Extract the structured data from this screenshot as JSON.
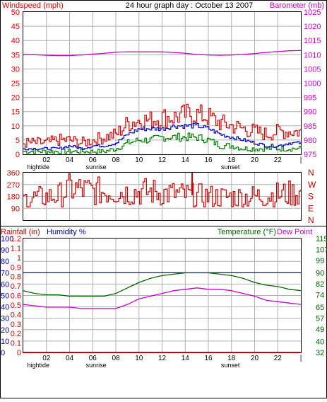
{
  "colors": {
    "wind": "#dd0000",
    "gust_blue": "#0000cc",
    "wind_green": "#008000",
    "barometer": "#cc00cc",
    "direction": "#cc0000",
    "rain": "#cc0000",
    "humidity": "#000099",
    "temperature": "#006600",
    "dewpoint": "#cc00cc",
    "grid": "#b0b0b0",
    "frame": "#000000"
  },
  "top_panel": {
    "left_label": "Windspeed (mph)",
    "title": "24 hour graph day : October 13 2007",
    "right_label": "Barometer (mb)"
  },
  "mid_panel": {
    "compass_letters": [
      "N",
      "W",
      "S",
      "E",
      "N"
    ]
  },
  "bottom_panel": {
    "rain_label": "Rainfall (in)",
    "humidity_label": "Humidity %",
    "temp_label": "Temperature (°F)",
    "dew_label": "Dew Point"
  },
  "time_axis": {
    "ticks": [
      "02",
      "04",
      "06",
      "08",
      "10",
      "12",
      "14",
      "16",
      "18",
      "20",
      "22",
      "|"
    ],
    "events": [
      "hightide",
      "sunrise",
      "sunset"
    ]
  },
  "chart_data": [
    {
      "type": "line",
      "name": "wind-barometer",
      "x_hours": [
        0,
        1,
        2,
        3,
        4,
        5,
        6,
        7,
        8,
        9,
        10,
        11,
        12,
        13,
        14,
        15,
        16,
        17,
        18,
        19,
        20,
        21,
        22,
        23,
        24
      ],
      "series": [
        {
          "name": "Windspeed (mph)",
          "axis": "left",
          "values": [
            4,
            4,
            4,
            5,
            5,
            4,
            5,
            6,
            7,
            11,
            12,
            12,
            13,
            13,
            14,
            14,
            13,
            11,
            10,
            9,
            8,
            7,
            8,
            8,
            8
          ]
        },
        {
          "name": "blue",
          "axis": "left",
          "values": [
            2,
            2,
            2,
            2,
            3,
            2,
            3,
            3,
            4,
            7,
            9,
            9,
            9,
            10,
            10,
            10,
            9,
            7,
            6,
            5,
            4,
            3,
            3,
            4,
            4
          ]
        },
        {
          "name": "green",
          "axis": "left",
          "values": [
            1,
            1,
            1,
            1,
            1,
            1,
            1,
            1,
            2,
            4,
            5,
            5,
            6,
            6,
            6,
            6,
            5,
            3,
            3,
            2,
            2,
            2,
            2,
            2,
            2
          ]
        },
        {
          "name": "Barometer (mb)",
          "axis": "right",
          "values": [
            1010,
            1010,
            1009.8,
            1009.7,
            1009.7,
            1009.9,
            1010.2,
            1010.5,
            1010.9,
            1011,
            1011,
            1011,
            1011,
            1010.8,
            1010.5,
            1010.1,
            1009.9,
            1009.8,
            1009.9,
            1010.1,
            1010.4,
            1010.8,
            1011.1,
            1011.4,
            1011.5
          ]
        }
      ],
      "left_axis": {
        "label": "Windspeed (mph)",
        "ticks": [
          0,
          5,
          10,
          15,
          20,
          25,
          30,
          35,
          40,
          45,
          50
        ],
        "ylim": [
          0,
          50
        ]
      },
      "right_axis": {
        "label": "Barometer (mb)",
        "ticks": [
          975,
          980,
          985,
          990,
          995,
          1000,
          1005,
          1010,
          1015,
          1020,
          1025
        ],
        "ylim": [
          975,
          1025
        ]
      },
      "grid": true
    },
    {
      "type": "line",
      "name": "wind-direction",
      "x_hours": [
        0,
        1,
        2,
        3,
        4,
        5,
        6,
        7,
        8,
        9,
        10,
        11,
        12,
        13,
        14,
        15,
        16,
        17,
        18,
        19,
        20,
        21,
        22,
        23,
        24
      ],
      "series": [
        {
          "name": "direction",
          "values": [
            160,
            170,
            175,
            185,
            240,
            230,
            220,
            215,
            215,
            210,
            215,
            215,
            205,
            200,
            190,
            185,
            180,
            175,
            175,
            175,
            180,
            185,
            195,
            200,
            205
          ]
        }
      ],
      "spike": {
        "x_hour": 14.6,
        "value": 360
      },
      "left_axis": {
        "ticks": [
          0,
          90,
          180,
          270,
          360
        ],
        "ylim": [
          0,
          360
        ]
      },
      "grid": true
    },
    {
      "type": "line",
      "name": "rain-humidity-temperature",
      "x_hours": [
        0,
        1,
        2,
        3,
        4,
        5,
        6,
        7,
        8,
        9,
        10,
        11,
        12,
        13,
        14,
        15,
        16,
        17,
        18,
        19,
        20,
        21,
        22,
        23,
        24
      ],
      "series": [
        {
          "name": "Humidity %",
          "values": [
            70,
            70,
            70,
            70,
            70,
            70,
            70,
            70,
            70,
            70,
            70,
            70,
            70,
            70,
            70,
            70,
            70,
            70,
            70,
            70,
            70,
            70,
            70,
            70,
            70
          ]
        },
        {
          "name": "Rainfall (in)",
          "values": [
            0,
            0,
            0,
            0,
            0,
            0,
            0,
            0,
            0,
            0,
            0,
            0,
            0,
            0,
            0,
            0,
            0,
            0,
            0,
            0,
            0,
            0,
            0,
            0,
            0
          ]
        },
        {
          "name": "Temperature (°F)",
          "values": [
            77,
            75,
            74,
            74,
            73,
            73,
            73,
            73,
            75,
            79,
            83,
            86,
            88,
            89,
            90,
            90,
            90,
            89,
            88,
            86,
            83,
            81,
            80,
            78,
            77
          ]
        },
        {
          "name": "Dew Point",
          "values": [
            67,
            66,
            65,
            65,
            65,
            64,
            64,
            64,
            64,
            67,
            71,
            73,
            75,
            77,
            78,
            79,
            78,
            78,
            77,
            75,
            73,
            70,
            69,
            68,
            67
          ]
        }
      ],
      "rain_axis": {
        "label": "Rainfall (in)",
        "ticks": [
          0,
          0.1,
          0.2,
          0.3,
          0.4,
          0.5,
          0.6,
          0.7,
          0.8,
          0.9,
          1,
          1.1,
          1.2
        ],
        "ylim": [
          0,
          1.2
        ]
      },
      "humidity_axis": {
        "label": "Humidity %",
        "ticks": [
          0,
          10,
          20,
          30,
          40,
          50,
          60,
          70,
          80,
          90,
          100
        ],
        "ylim": [
          0,
          100
        ]
      },
      "temp_axis": {
        "label": "Temperature (°F)",
        "ticks": [
          32,
          40,
          49,
          57,
          65,
          74,
          82,
          90,
          99,
          107,
          115
        ],
        "ylim": [
          32,
          115
        ]
      },
      "grid": true
    }
  ]
}
